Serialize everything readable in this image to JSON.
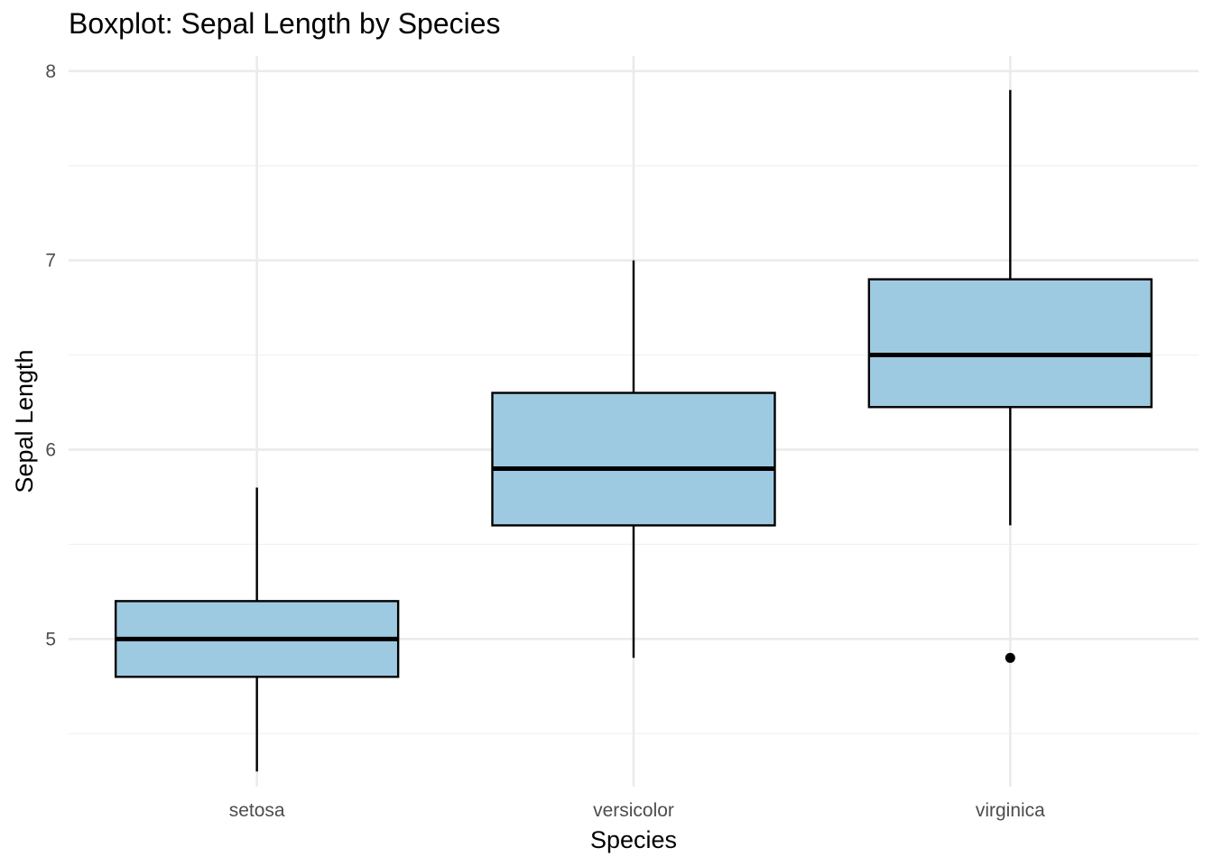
{
  "chart_data": {
    "type": "boxplot",
    "title": "Boxplot: Sepal Length by Species",
    "xlabel": "Species",
    "ylabel": "Sepal Length",
    "categories": [
      "setosa",
      "versicolor",
      "virginica"
    ],
    "boxes": [
      {
        "category": "setosa",
        "whisker_low": 4.3,
        "q1": 4.8,
        "median": 5.0,
        "q3": 5.2,
        "whisker_high": 5.8,
        "outliers": []
      },
      {
        "category": "versicolor",
        "whisker_low": 4.9,
        "q1": 5.6,
        "median": 5.9,
        "q3": 6.3,
        "whisker_high": 7.0,
        "outliers": []
      },
      {
        "category": "virginica",
        "whisker_low": 5.6,
        "q1": 6.225,
        "median": 6.5,
        "q3": 6.9,
        "whisker_high": 7.9,
        "outliers": [
          4.9
        ]
      }
    ],
    "ylim": [
      4.22,
      8.08
    ],
    "y_ticks": [
      5,
      6,
      7,
      8
    ],
    "y_minor_ticks": [
      4.5,
      5.5,
      6.5,
      7.5
    ],
    "grid": true,
    "legend": "none",
    "colors": {
      "box_fill": "#9ecae1",
      "box_stroke": "#000000",
      "grid_major": "#ebebeb",
      "grid_minor": "#f2f2f2",
      "outlier": "#000000"
    }
  }
}
